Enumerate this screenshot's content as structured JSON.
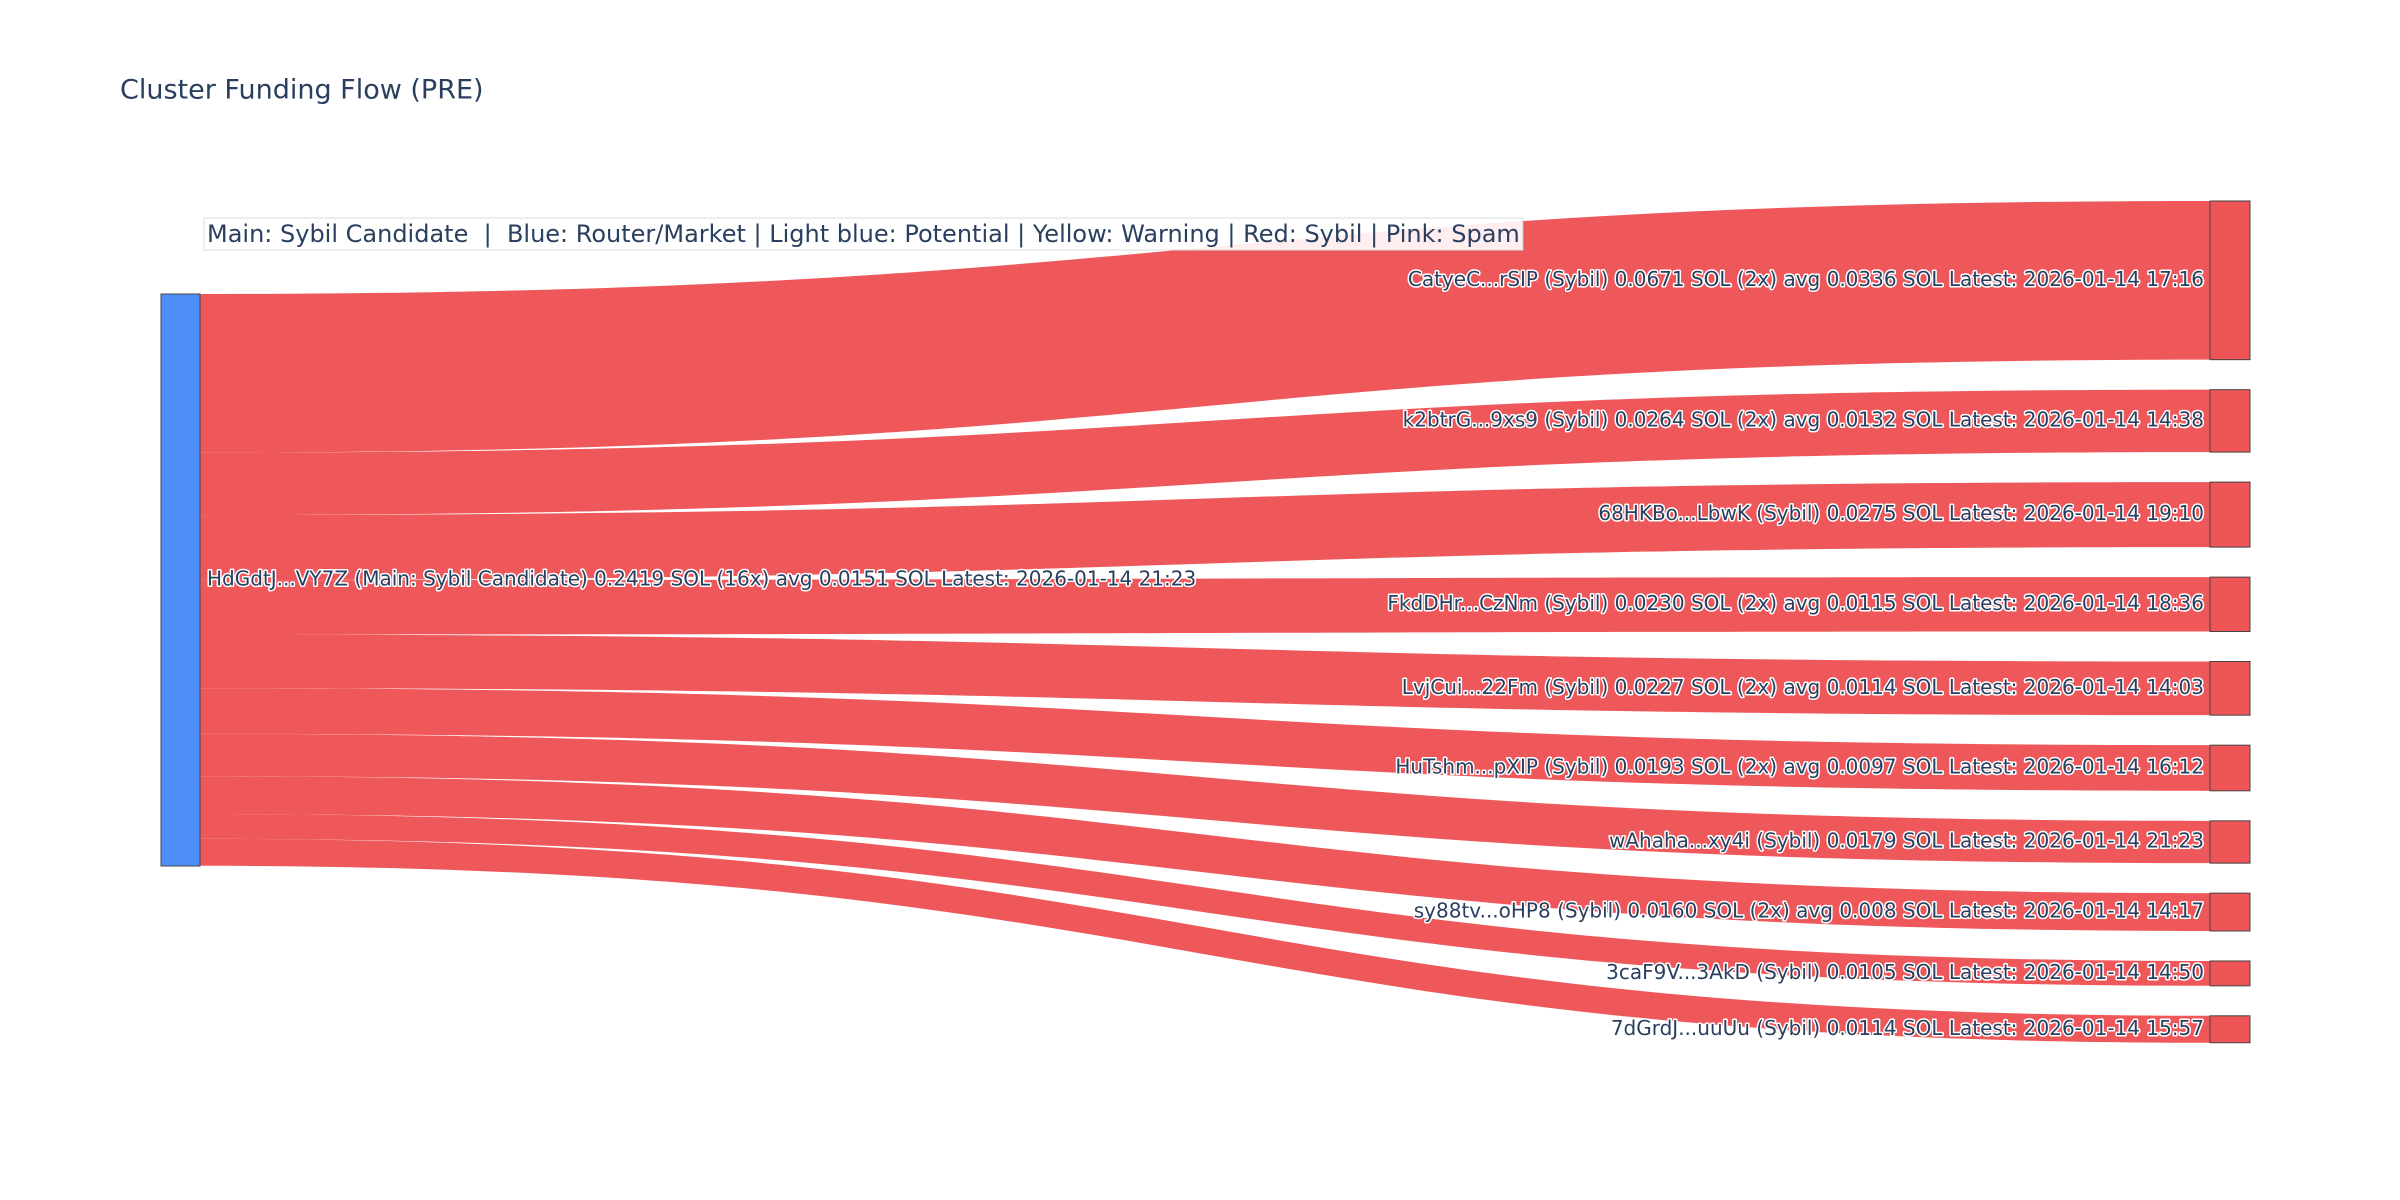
{
  "chart_data": {
    "type": "sankey",
    "title": "Cluster Funding Flow (PRE)",
    "annotation": "Main: Sybil Candidate  |  Blue: Router/Market | Light blue: Potential | Yellow: Warning | Red: Sybil | Pink: Spam",
    "source": {
      "label": "HdGdtJ...VY7Z (Main: Sybil Candidate) 0.2419 SOL (16x) avg 0.0151 SOL Latest: 2026-01-14 21:23",
      "value": 0.2419,
      "color": "#4d8ef8"
    },
    "link_color": "#ef5557",
    "targets": [
      {
        "label": "CatyeC...rSIP (Sybil) 0.0671 SOL (2x) avg 0.0336 SOL Latest: 2026-01-14 17:16",
        "value": 0.0671,
        "color": "#ef5557"
      },
      {
        "label": "k2btrG...9xs9 (Sybil) 0.0264 SOL (2x) avg 0.0132 SOL Latest: 2026-01-14 14:38",
        "value": 0.0264,
        "color": "#ef5557"
      },
      {
        "label": "68HKBo...LbwK (Sybil) 0.0275 SOL Latest: 2026-01-14 19:10",
        "value": 0.0275,
        "color": "#ef5557"
      },
      {
        "label": "FkdDHr...CzNm (Sybil) 0.0230 SOL (2x) avg 0.0115 SOL Latest: 2026-01-14 18:36",
        "value": 0.023,
        "color": "#ef5557"
      },
      {
        "label": "LvjCui...22Fm (Sybil) 0.0227 SOL (2x) avg 0.0114 SOL Latest: 2026-01-14 14:03",
        "value": 0.0227,
        "color": "#ef5557"
      },
      {
        "label": "HuTshm...pXIP (Sybil) 0.0193 SOL (2x) avg 0.0097 SOL Latest: 2026-01-14 16:12",
        "value": 0.0193,
        "color": "#ef5557"
      },
      {
        "label": "wAhaha...xy4i (Sybil) 0.0179 SOL Latest: 2026-01-14 21:23",
        "value": 0.0179,
        "color": "#ef5557"
      },
      {
        "label": "sy88tv...oHP8 (Sybil) 0.0160 SOL (2x) avg 0.008 SOL Latest: 2026-01-14 14:17",
        "value": 0.016,
        "color": "#ef5557"
      },
      {
        "label": "3caF9V...3AkD (Sybil) 0.0105 SOL Latest: 2026-01-14 14:50",
        "value": 0.0105,
        "color": "#ef5557"
      },
      {
        "label": "7dGrdJ...uuUu (Sybil) 0.0114 SOL Latest: 2026-01-14 15:57",
        "value": 0.0114,
        "color": "#ef5557"
      }
    ]
  }
}
